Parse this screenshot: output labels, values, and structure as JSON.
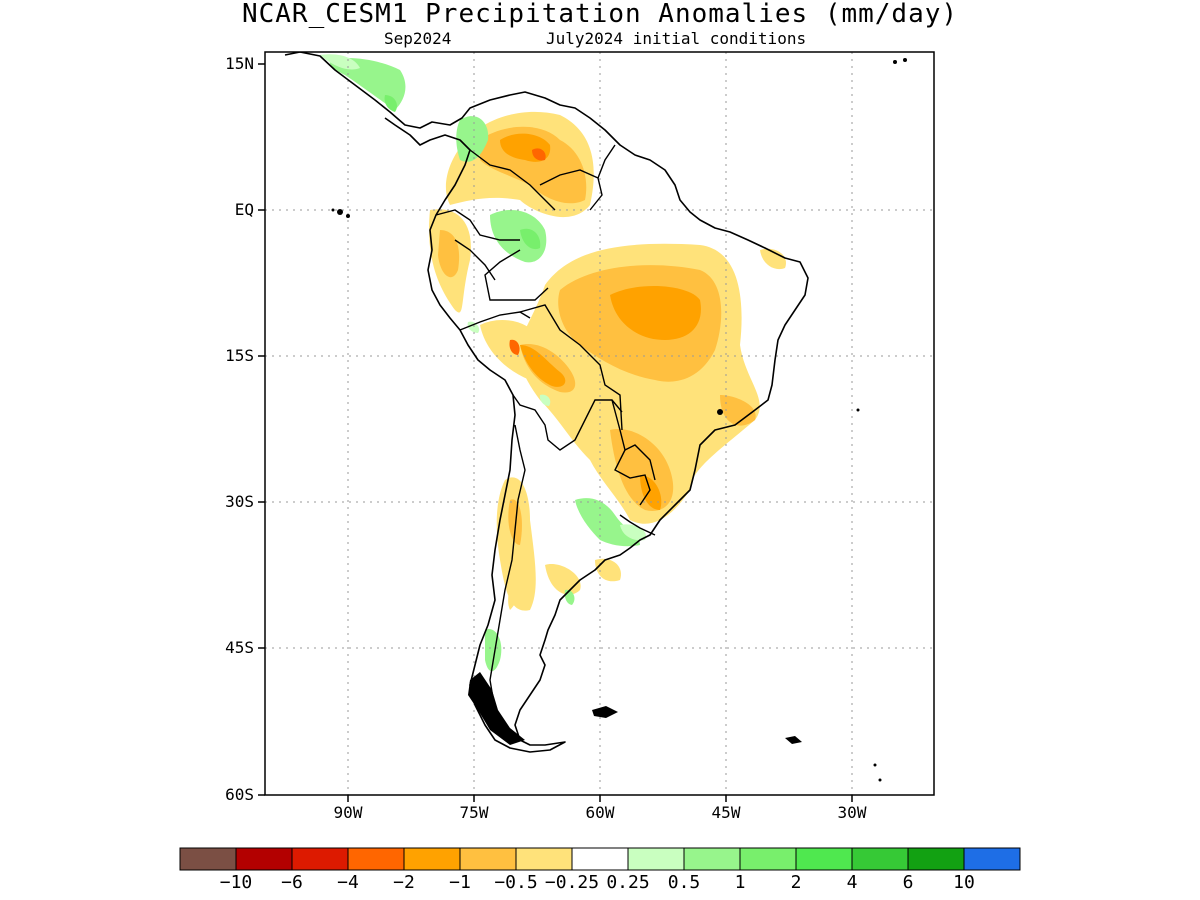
{
  "title": "NCAR_CESM1 Precipitation Anomalies (mm/day)",
  "subtitle_left": "Sep2024",
  "subtitle_right": "July2024 initial conditions",
  "lat_labels": [
    "15N",
    "EQ",
    "15S",
    "30S",
    "45S",
    "60S"
  ],
  "lon_labels": [
    "90W",
    "75W",
    "60W",
    "45W",
    "30W"
  ],
  "colorbar": {
    "colors": [
      "#7b4f44",
      "#b30000",
      "#dd1a00",
      "#ff6600",
      "#ffa200",
      "#ffc040",
      "#ffe27a",
      "#ffffff",
      "#c9ffc0",
      "#97f58c",
      "#78ef6c",
      "#4fe84f",
      "#36c936",
      "#12a112",
      "#1e6ee6"
    ],
    "labels": [
      "-10",
      "-6",
      "-4",
      "-2",
      "-1",
      "-0.5",
      "-0.25",
      "0.25",
      "0.5",
      "1",
      "2",
      "4",
      "6",
      "10"
    ]
  }
}
